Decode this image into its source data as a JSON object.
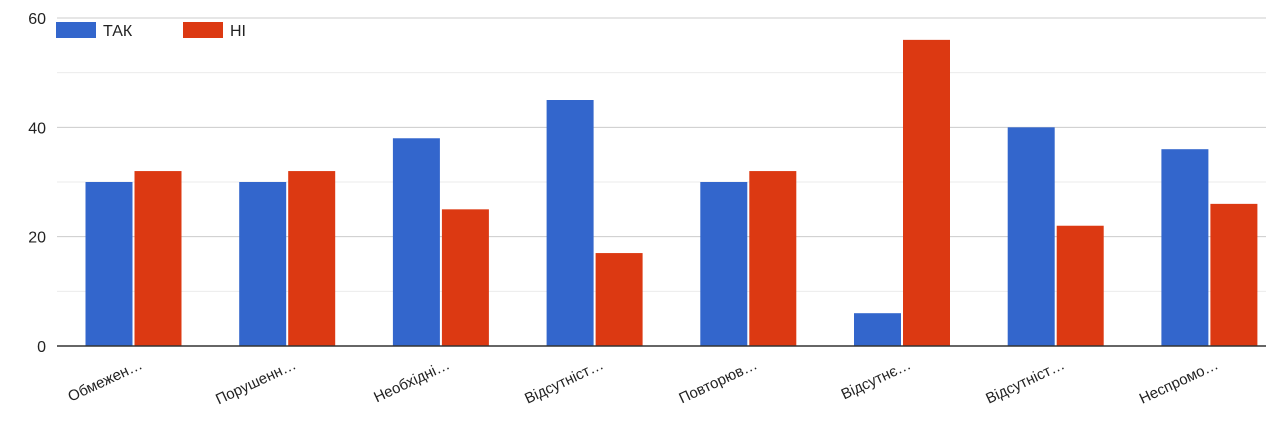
{
  "chart_data": {
    "type": "bar",
    "categories": [
      "Обмежен…",
      "Порушенн…",
      "Необхідні…",
      "Відсутніст…",
      "Повторюв…",
      "Відсутнє…",
      "Відсутніст…",
      "Неспромо…"
    ],
    "series": [
      {
        "name": "ТАК",
        "color": "#3366cc",
        "values": [
          30,
          30,
          38,
          45,
          30,
          6,
          40,
          36
        ]
      },
      {
        "name": "НІ",
        "color": "#dc3912",
        "values": [
          32,
          32,
          25,
          17,
          32,
          56,
          22,
          26
        ]
      }
    ],
    "ylim": [
      0,
      60
    ],
    "yticks": [
      "0",
      "20",
      "40",
      "60"
    ],
    "ytick_values": [
      0,
      20,
      40,
      60
    ],
    "grid": true,
    "legend_position": "top-left"
  }
}
